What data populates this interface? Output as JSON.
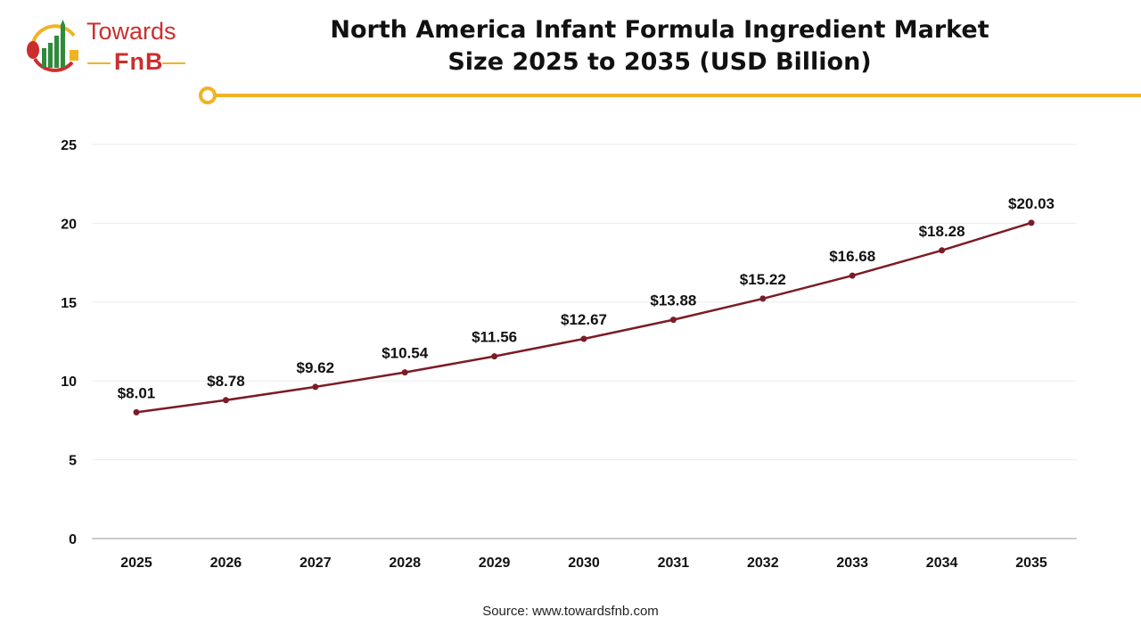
{
  "logo": {
    "line1": "Towards",
    "line2": "FnB"
  },
  "title_line1": "North America Infant Formula Ingredient Market",
  "title_line2": "Size 2025 to 2035 (USD Billion)",
  "source": "Source: www.towardsfnb.com",
  "colors": {
    "line": "#7b1c25",
    "accent": "#f0b323",
    "logo_red": "#cc2e2e",
    "logo_green": "#2e8b3a"
  },
  "chart_data": {
    "type": "line",
    "title": "North America Infant Formula Ingredient Market Size 2025 to 2035 (USD Billion)",
    "categories": [
      "2025",
      "2026",
      "2027",
      "2028",
      "2029",
      "2030",
      "2031",
      "2032",
      "2033",
      "2034",
      "2035"
    ],
    "values": [
      8.01,
      8.78,
      9.62,
      10.54,
      11.56,
      12.67,
      13.88,
      15.22,
      16.68,
      18.28,
      20.03
    ],
    "data_labels": [
      "$8.01",
      "$8.78",
      "$9.62",
      "$10.54",
      "$11.56",
      "$12.67",
      "$13.88",
      "$15.22",
      "$16.68",
      "$18.28",
      "$20.03"
    ],
    "yticks": [
      0,
      5,
      10,
      15,
      20,
      25
    ],
    "ylim": [
      0,
      25
    ],
    "grid": true,
    "legend": "none"
  }
}
